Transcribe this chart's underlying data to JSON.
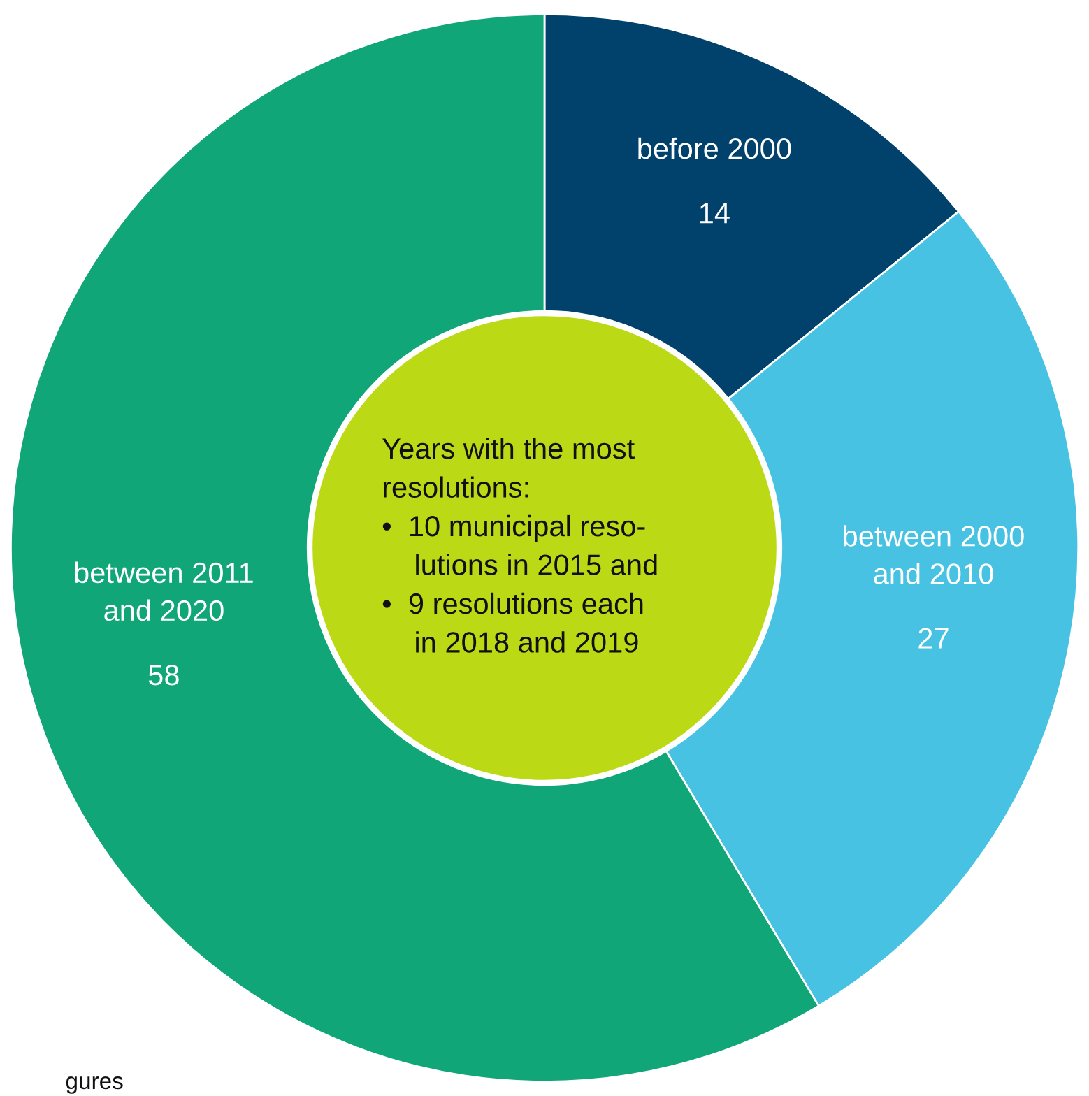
{
  "chart_data": {
    "type": "donut",
    "categories": [
      "before 2000",
      "between 2000\nand 2010",
      "between 2011\nand 2020"
    ],
    "values": [
      14,
      27,
      58
    ],
    "colors": [
      "#00426b",
      "#48c2e3",
      "#10a678"
    ],
    "data_labels": true,
    "legend": false,
    "annotations": [
      "Years with the most\nresolutions:\n•  10 municipal reso-\n    lutions in 2015 and\n•  9 resolutions each\n    in 2018 and 2019",
      "gures"
    ]
  }
}
